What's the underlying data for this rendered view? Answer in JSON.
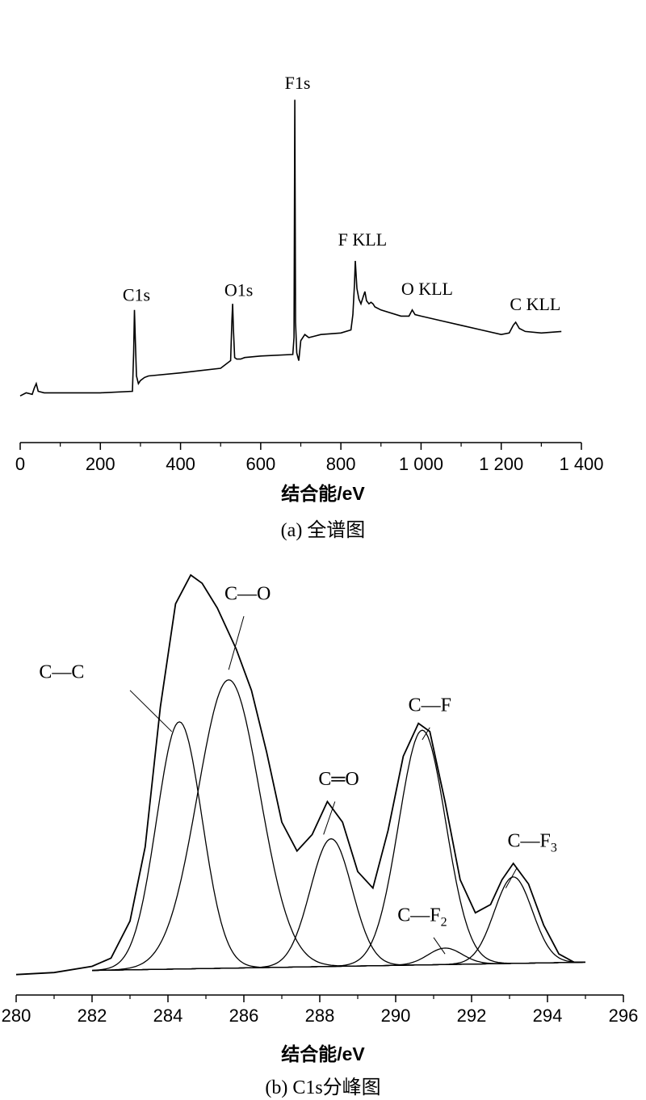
{
  "chart_data": [
    {
      "type": "line",
      "xlabel": "结合能/eV",
      "caption": "(a) 全谱图",
      "xlim": [
        0,
        1400
      ],
      "x_ticks": [
        "0",
        "200",
        "400",
        "600",
        "800",
        "1 000",
        "1 200",
        "1 400"
      ],
      "y_axis_shown": false,
      "grid": false,
      "series": [
        {
          "x": [
            0,
            15,
            30,
            35,
            40,
            45,
            60,
            100,
            200,
            280,
            283,
            285,
            287,
            290,
            295,
            300,
            310,
            320,
            400,
            500,
            525,
            528,
            530,
            532,
            535,
            540,
            550,
            560,
            600,
            680,
            683,
            685,
            687,
            690,
            695,
            700,
            710,
            720,
            735,
            750,
            800,
            825,
            830,
            834,
            836,
            840,
            845,
            850,
            855,
            860,
            864,
            870,
            875,
            880,
            885,
            900,
            950,
            970,
            978,
            985,
            1000,
            1050,
            1100,
            1150,
            1200,
            1220,
            1230,
            1236,
            1245,
            1260,
            1300,
            1350
          ],
          "y": [
            0.02,
            0.04,
            0.03,
            0.07,
            0.1,
            0.05,
            0.04,
            0.04,
            0.04,
            0.05,
            0.3,
            0.58,
            0.4,
            0.15,
            0.1,
            0.12,
            0.14,
            0.15,
            0.17,
            0.2,
            0.25,
            0.5,
            0.62,
            0.45,
            0.27,
            0.26,
            0.26,
            0.27,
            0.28,
            0.29,
            0.4,
            1.95,
            0.5,
            0.3,
            0.25,
            0.38,
            0.42,
            0.4,
            0.41,
            0.42,
            0.43,
            0.45,
            0.55,
            0.75,
            0.9,
            0.72,
            0.65,
            0.62,
            0.66,
            0.7,
            0.64,
            0.62,
            0.63,
            0.62,
            0.6,
            0.58,
            0.54,
            0.54,
            0.58,
            0.55,
            0.54,
            0.51,
            0.48,
            0.45,
            0.42,
            0.43,
            0.48,
            0.5,
            0.46,
            0.44,
            0.43,
            0.44
          ],
          "annotations": [
            {
              "text": "C1s",
              "x": 290,
              "y": 0.64
            },
            {
              "text": "O1s",
              "x": 545,
              "y": 0.67
            },
            {
              "text": "F1s",
              "x": 692,
              "y": 2.02
            },
            {
              "text": "F KLL",
              "x": 854,
              "y": 1.0
            },
            {
              "text": "O KLL",
              "x": 1015,
              "y": 0.68
            },
            {
              "text": "C KLL",
              "x": 1285,
              "y": 0.58
            }
          ]
        }
      ]
    },
    {
      "type": "line",
      "xlabel": "结合能/eV",
      "caption": "(b) C1s分峰图",
      "xlim": [
        280,
        296
      ],
      "x_ticks": [
        "280",
        "282",
        "284",
        "286",
        "288",
        "290",
        "292",
        "294",
        "296"
      ],
      "y_axis_shown": false,
      "grid": false,
      "envelope": {
        "x": [
          280,
          281,
          282,
          282.5,
          283,
          283.4,
          283.8,
          284.2,
          284.6,
          284.9,
          285.3,
          285.8,
          286.2,
          286.6,
          287,
          287.4,
          287.8,
          288.2,
          288.6,
          289,
          289.4,
          289.8,
          290.2,
          290.6,
          290.9,
          291.3,
          291.7,
          292.1,
          292.5,
          292.8,
          293.1,
          293.5,
          293.9,
          294.3,
          294.7,
          295
        ],
        "y": [
          0.03,
          0.035,
          0.05,
          0.07,
          0.16,
          0.34,
          0.68,
          0.93,
          1.0,
          0.98,
          0.92,
          0.82,
          0.72,
          0.57,
          0.4,
          0.33,
          0.37,
          0.45,
          0.4,
          0.28,
          0.24,
          0.38,
          0.56,
          0.64,
          0.62,
          0.45,
          0.26,
          0.18,
          0.2,
          0.26,
          0.3,
          0.25,
          0.15,
          0.08,
          0.06,
          0.06
        ]
      },
      "baseline": {
        "x": [
          282,
          295
        ],
        "y": [
          0.04,
          0.06
        ]
      },
      "peaks": [
        {
          "name": "C—C",
          "center": 284.3,
          "height": 0.6,
          "sigma": 0.6
        },
        {
          "name": "C—O",
          "center": 285.6,
          "height": 0.7,
          "sigma": 0.82
        },
        {
          "name": "C═O",
          "center": 288.3,
          "height": 0.31,
          "sigma": 0.55
        },
        {
          "name": "C—F",
          "center": 290.7,
          "height": 0.57,
          "sigma": 0.62
        },
        {
          "name": "C—F",
          "sub": "2",
          "center": 291.3,
          "height": 0.04,
          "sigma": 0.45
        },
        {
          "name": "C—F",
          "sub": "3",
          "center": 293.1,
          "height": 0.21,
          "sigma": 0.5
        }
      ],
      "annotations": [
        {
          "text": "C—C",
          "x": 281.2,
          "y": 0.75
        },
        {
          "text": "C—O",
          "x": 286.1,
          "y": 0.94
        },
        {
          "text": "C═O",
          "x": 288.5,
          "y": 0.49
        },
        {
          "text": "C—F",
          "x": 290.9,
          "y": 0.67
        },
        {
          "text": "C—F",
          "sub": "2",
          "x": 290.7,
          "y": 0.16
        },
        {
          "text": "C—F",
          "sub": "3",
          "x": 293.6,
          "y": 0.34
        }
      ]
    }
  ]
}
